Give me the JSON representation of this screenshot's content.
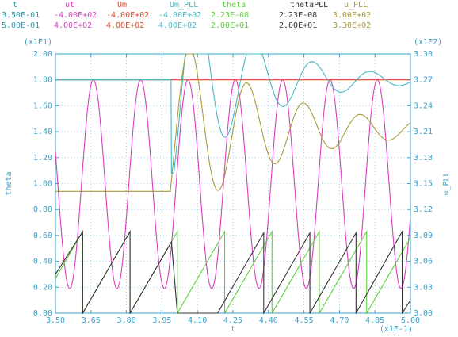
{
  "legend": {
    "columns": [
      {
        "name": "t",
        "min": "3.50E-01",
        "max": "5.00E-01",
        "color": "#2a9bb3"
      },
      {
        "name": "ut",
        "min": "-4.00E+02",
        "max": "4.00E+02",
        "color": "#d93fbf"
      },
      {
        "name": "Um",
        "min": "-4.00E+02",
        "max": "4.00E+02",
        "color": "#d9472a"
      },
      {
        "name": "Um_PLL",
        "min": "-4.00E+02",
        "max": "4.00E+02",
        "color": "#45b8c4"
      },
      {
        "name": "theta",
        "min": "2.23E-08",
        "max": "2.00E+01",
        "color": "#5ed13b"
      },
      {
        "name": "thetaPLL",
        "min": "2.23E-08",
        "max": "2.00E+01",
        "color": "#333333"
      },
      {
        "name": "u_PLL",
        "min": "3.00E+02",
        "max": "3.30E+02",
        "color": "#a89a3a"
      }
    ]
  },
  "chart_data": {
    "type": "line",
    "xlabel": "t",
    "ylabel_left": "theta",
    "ylabel_right": "u_PLL",
    "x_multiplier": "(x1E-1)",
    "y_left_multiplier": "(x1E1)",
    "y_right_multiplier": "(x1E2)",
    "xlim": [
      3.5,
      5.0
    ],
    "ylim_left": [
      0.0,
      2.0
    ],
    "ylim_right": [
      3.0,
      3.3
    ],
    "x_ticks": [
      "3.50",
      "3.65",
      "3.80",
      "3.95",
      "4.10",
      "4.25",
      "4.40",
      "4.55",
      "4.70",
      "4.85",
      "5.00"
    ],
    "y_left_ticks": [
      "0.00",
      "0.20",
      "0.40",
      "0.60",
      "0.80",
      "1.00",
      "1.20",
      "1.40",
      "1.60",
      "1.80",
      "2.00"
    ],
    "y_right_ticks": [
      "3.00",
      "3.03",
      "3.06",
      "3.09",
      "3.12",
      "3.15",
      "3.18",
      "3.21",
      "3.24",
      "3.27",
      "3.30"
    ],
    "grid": true,
    "series": [
      {
        "name": "ut",
        "color": "#d93fbf",
        "kind": "sine",
        "frequency_per_unit": 5.0,
        "phase_ref": 3.66,
        "amplitude": 0.805,
        "offset": 0.995
      },
      {
        "name": "Um",
        "color": "#d9472a",
        "kind": "const",
        "value": 1.8
      },
      {
        "name": "Um_PLL",
        "color": "#45b8c4",
        "kind": "damped",
        "pre_value": 1.8,
        "dip_at": 3.99,
        "dip_value": 1.08,
        "step_at": 4.0,
        "final": 1.8,
        "overshoot": 0.5,
        "tau": 0.32,
        "period": 0.245
      },
      {
        "name": "theta",
        "color": "#5ed13b",
        "kind": "sawtooth",
        "period": 0.2,
        "start": 3.415,
        "peak": 0.63
      },
      {
        "name": "thetaPLL",
        "color": "#333333",
        "kind": "sawtooth_late",
        "points": [
          [
            3.5,
            0.3
          ],
          [
            3.615,
            0.63
          ],
          [
            3.615,
            0.0
          ],
          [
            3.815,
            0.63
          ],
          [
            3.815,
            0.0
          ],
          [
            3.99,
            0.55
          ],
          [
            4.015,
            0.0
          ],
          [
            4.185,
            0.0
          ],
          [
            4.38,
            0.62
          ],
          [
            4.38,
            0.0
          ],
          [
            4.575,
            0.62
          ],
          [
            4.575,
            0.0
          ],
          [
            4.77,
            0.62
          ],
          [
            4.77,
            0.0
          ],
          [
            4.965,
            0.63
          ],
          [
            4.965,
            0.0
          ],
          [
            5.0,
            0.1
          ]
        ]
      },
      {
        "name": "u_PLL",
        "color": "#a89a3a",
        "kind": "damped",
        "pre_value": 0.94,
        "step_at": 3.985,
        "final": 1.42,
        "overshoot": 0.6,
        "tau": 0.42,
        "period": 0.24
      }
    ]
  }
}
